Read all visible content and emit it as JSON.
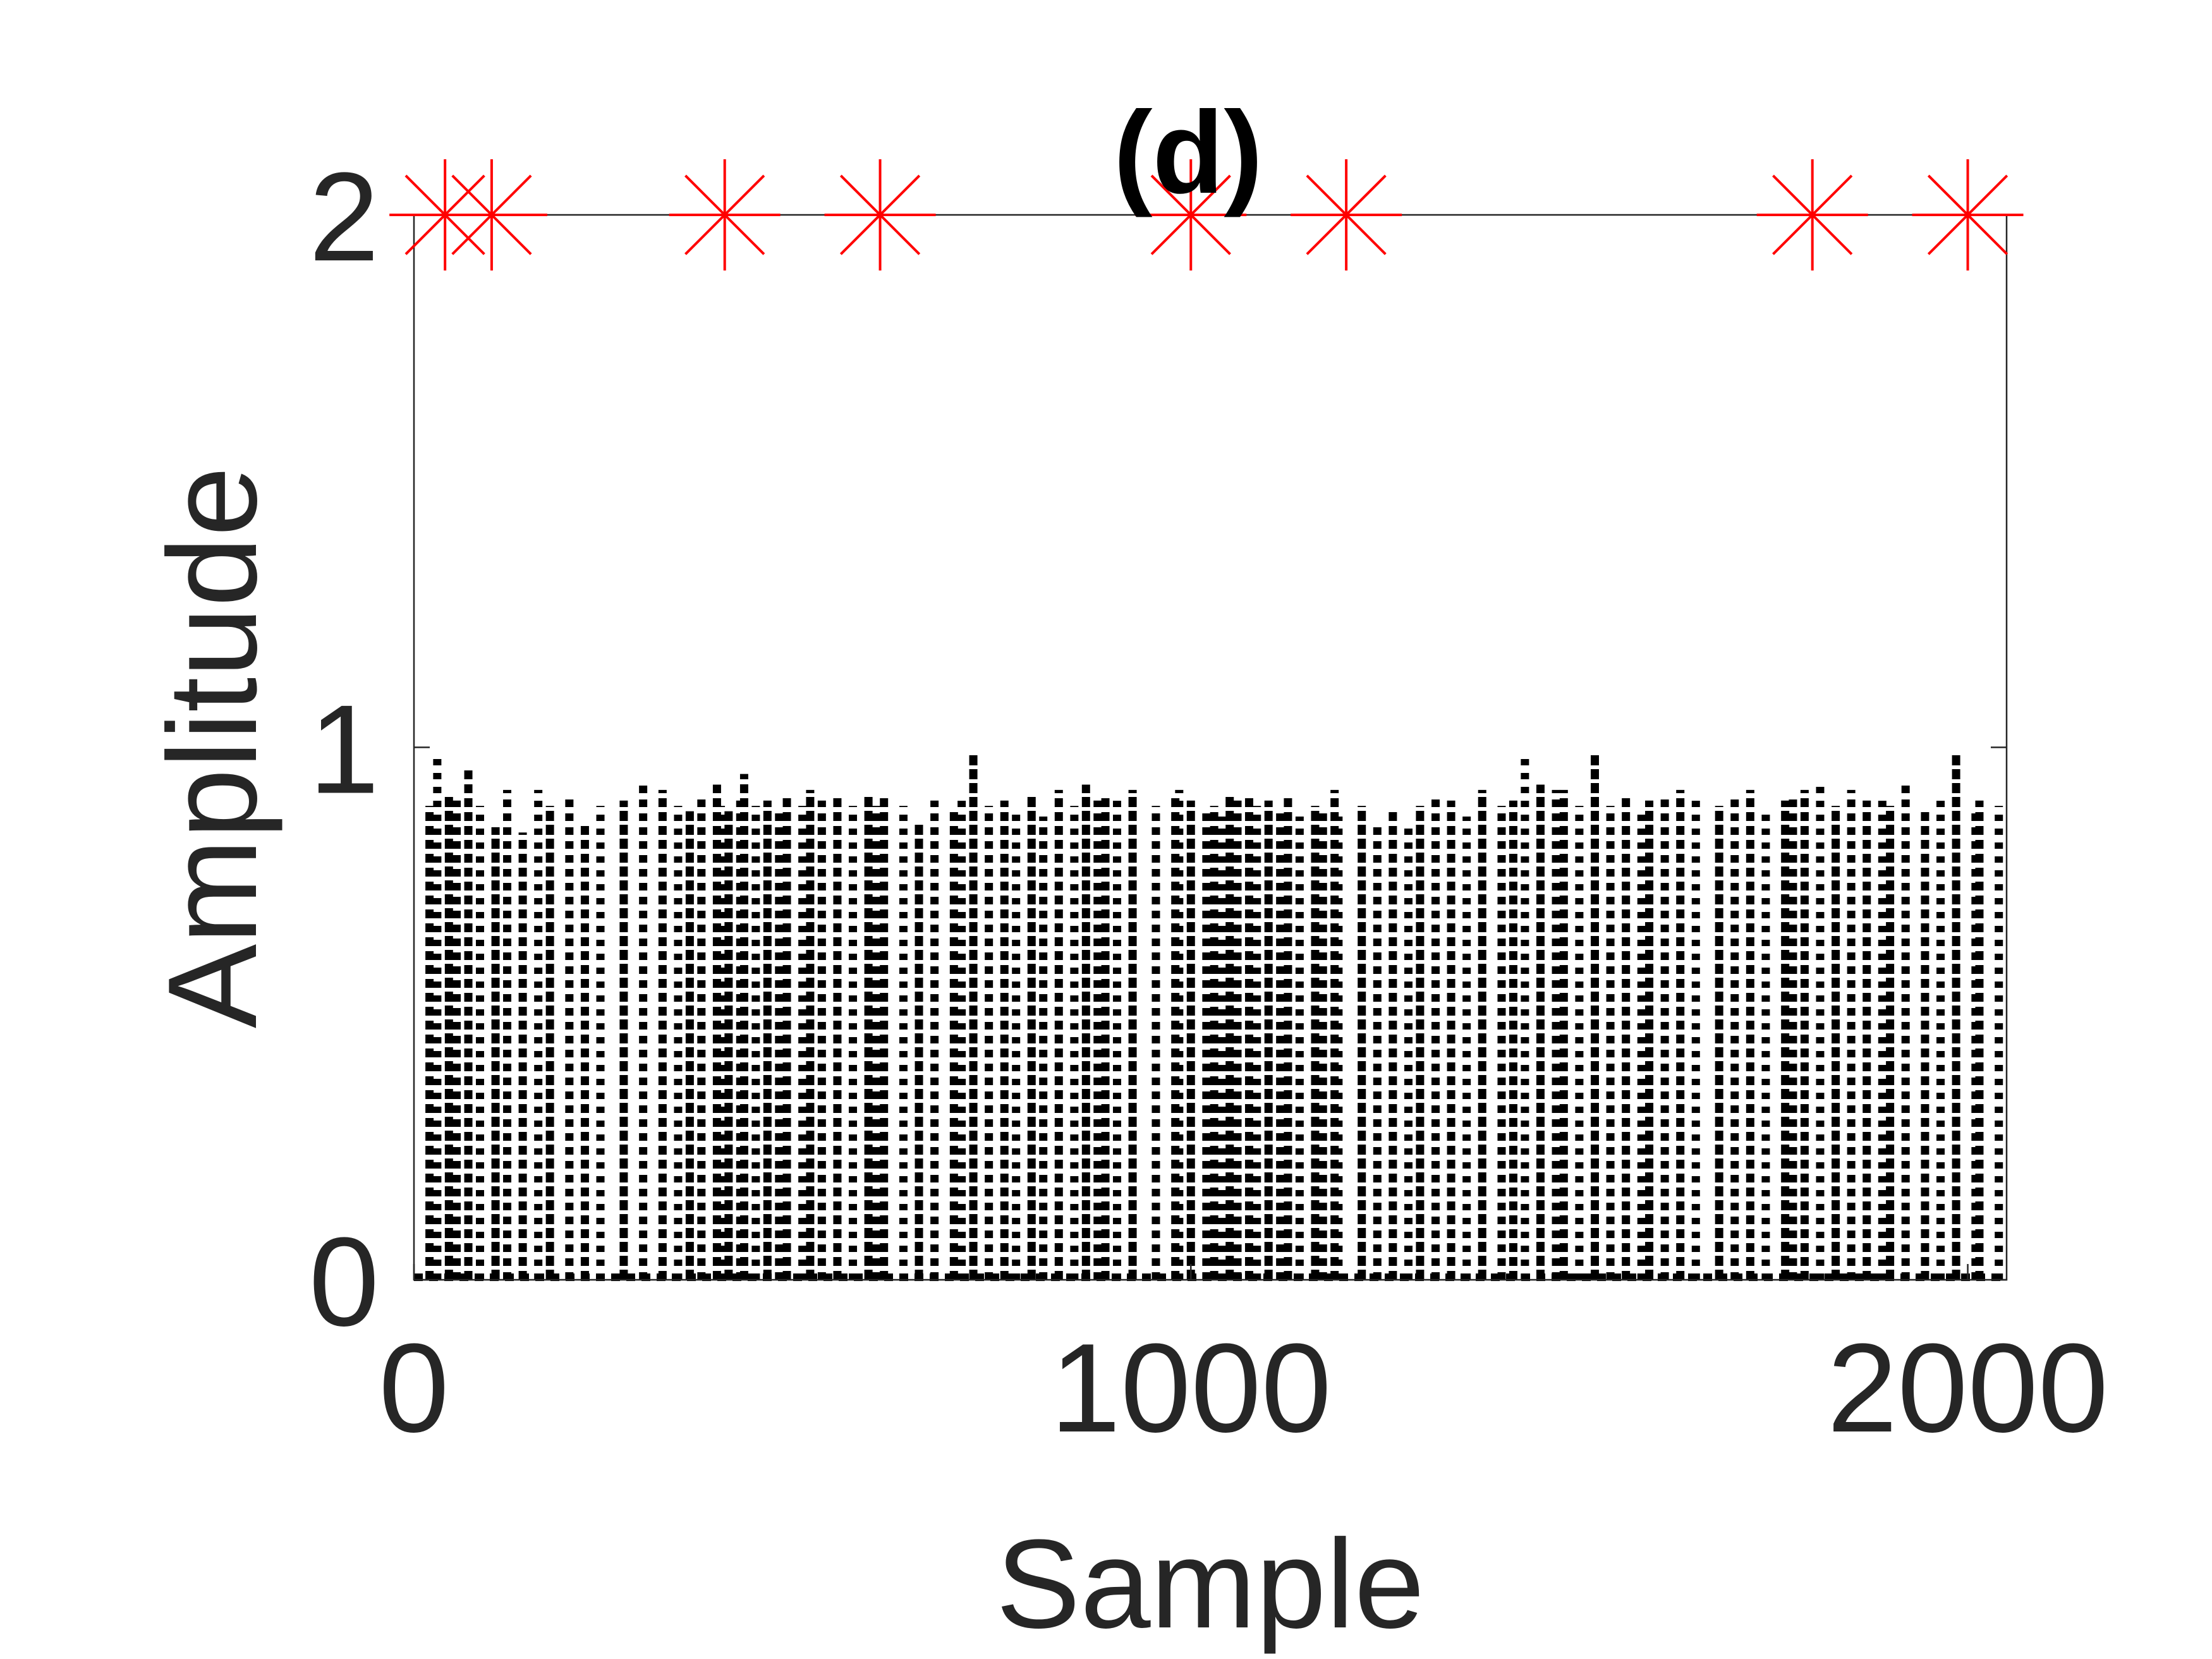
{
  "chart_data": {
    "type": "bar",
    "title": "(d)",
    "xlabel": "Sample",
    "ylabel": "Amplitude",
    "xlim": [
      0,
      2050
    ],
    "ylim": [
      0,
      2
    ],
    "xticks": [
      0,
      1000,
      2000
    ],
    "yticks": [
      0,
      1,
      2
    ],
    "grid": false,
    "colors": {
      "stems": "#000000",
      "markers": "#ff0000",
      "axes": "#262626"
    },
    "series": [
      {
        "style": "black dotted vertical stems",
        "x": [
          20,
          30,
          45,
          55,
          70,
          85,
          105,
          120,
          140,
          160,
          175,
          200,
          220,
          240,
          270,
          295,
          320,
          340,
          355,
          370,
          390,
          395,
          405,
          420,
          425,
          440,
          455,
          470,
          480,
          500,
          510,
          525,
          545,
          565,
          585,
          595,
          605,
          630,
          650,
          670,
          695,
          705,
          720,
          740,
          760,
          775,
          795,
          810,
          830,
          850,
          865,
          880,
          890,
          905,
          925,
          955,
          980,
          985,
          1000,
          1020,
          1030,
          1040,
          1050,
          1060,
          1075,
          1085,
          1100,
          1115,
          1125,
          1140,
          1160,
          1170,
          1185,
          1190,
          1220,
          1240,
          1260,
          1280,
          1295,
          1315,
          1335,
          1355,
          1375,
          1400,
          1415,
          1430,
          1450,
          1470,
          1480,
          1500,
          1520,
          1540,
          1560,
          1580,
          1590,
          1610,
          1630,
          1650,
          1680,
          1700,
          1720,
          1740,
          1765,
          1775,
          1790,
          1810,
          1830,
          1850,
          1870,
          1890,
          1900,
          1920,
          1945,
          1965,
          1985,
          2010,
          2015,
          2040
        ],
        "y": [
          0.89,
          0.98,
          0.91,
          0.9,
          0.96,
          0.89,
          0.85,
          0.92,
          0.84,
          0.92,
          0.89,
          0.91,
          0.86,
          0.89,
          0.9,
          0.94,
          0.92,
          0.89,
          0.88,
          0.91,
          0.93,
          0.89,
          0.88,
          0.9,
          0.95,
          0.89,
          0.9,
          0.88,
          0.91,
          0.89,
          0.92,
          0.9,
          0.91,
          0.89,
          0.91,
          0.89,
          0.91,
          0.89,
          0.86,
          0.9,
          0.88,
          0.91,
          0.99,
          0.89,
          0.9,
          0.88,
          0.91,
          0.87,
          0.92,
          0.89,
          0.93,
          0.9,
          0.91,
          0.9,
          0.92,
          0.89,
          0.91,
          0.92,
          0.9,
          0.88,
          0.89,
          0.87,
          0.91,
          0.9,
          0.91,
          0.89,
          0.9,
          0.88,
          0.91,
          0.87,
          0.89,
          0.88,
          0.92,
          0.87,
          0.89,
          0.85,
          0.88,
          0.86,
          0.89,
          0.91,
          0.9,
          0.87,
          0.92,
          0.89,
          0.9,
          0.99,
          0.93,
          0.92,
          0.92,
          0.89,
          0.99,
          0.89,
          0.91,
          0.88,
          0.9,
          0.91,
          0.92,
          0.9,
          0.89,
          0.91,
          0.92,
          0.88,
          0.9,
          0.91,
          0.92,
          0.93,
          0.89,
          0.92,
          0.9,
          0.91,
          0.89,
          0.93,
          0.88,
          0.91,
          0.99,
          0.88,
          0.9,
          0.89
        ]
      },
      {
        "style": "red asterisk markers",
        "x": [
          40,
          100,
          400,
          600,
          1000,
          1200,
          1800,
          2000
        ],
        "y": [
          2,
          2,
          2,
          2,
          2,
          2,
          2,
          2
        ]
      }
    ]
  }
}
